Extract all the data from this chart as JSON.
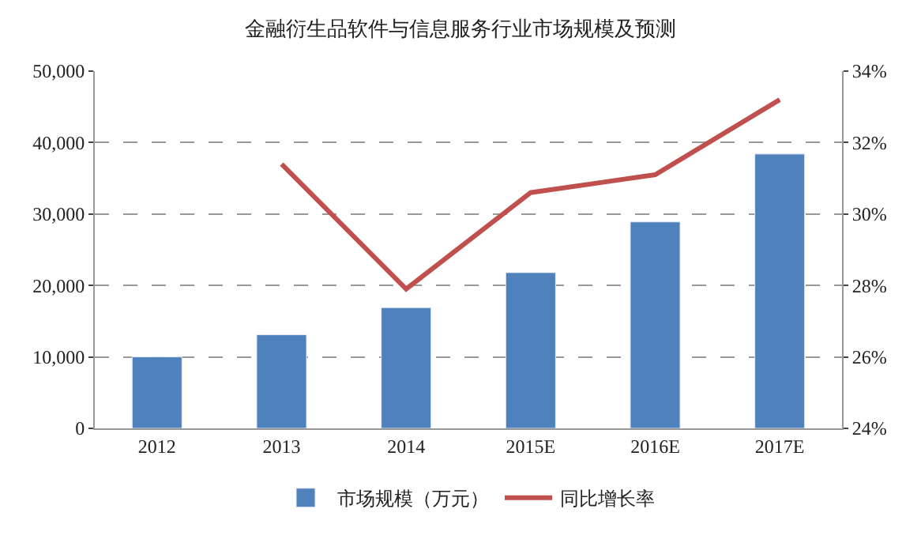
{
  "chart_data": {
    "type": "bar",
    "title": "金融衍生品软件与信息服务行业市场规模及预测",
    "categories": [
      "2012",
      "2013",
      "2014",
      "2015E",
      "2016E",
      "2017E"
    ],
    "series": [
      {
        "name": "市场规模（万元）",
        "color": "#4f81bd",
        "values": [
          10000,
          13100,
          16900,
          21800,
          28900,
          38400
        ]
      },
      {
        "name": "同比增长率",
        "type": "line",
        "axis": "y2",
        "color": "#c0504d",
        "values": [
          null,
          31.4,
          27.9,
          30.6,
          31.1,
          33.2
        ]
      }
    ],
    "ylim": [
      0,
      50000
    ],
    "yticks": [
      {
        "value": 0,
        "label": "0"
      },
      {
        "value": 10000,
        "label": "10,000"
      },
      {
        "value": 20000,
        "label": "20,000"
      },
      {
        "value": 30000,
        "label": "30,000"
      },
      {
        "value": 40000,
        "label": "40,000"
      },
      {
        "value": 50000,
        "label": "50,000"
      }
    ],
    "y2lim": [
      24,
      34
    ],
    "y2ticks": [
      {
        "value": 24,
        "label": "24%"
      },
      {
        "value": 26,
        "label": "26%"
      },
      {
        "value": 28,
        "label": "28%"
      },
      {
        "value": 30,
        "label": "30%"
      },
      {
        "value": 32,
        "label": "32%"
      },
      {
        "value": 34,
        "label": "34%"
      }
    ],
    "grid": "y",
    "legend": "bottom",
    "marker": "none",
    "line_style": "solid"
  }
}
